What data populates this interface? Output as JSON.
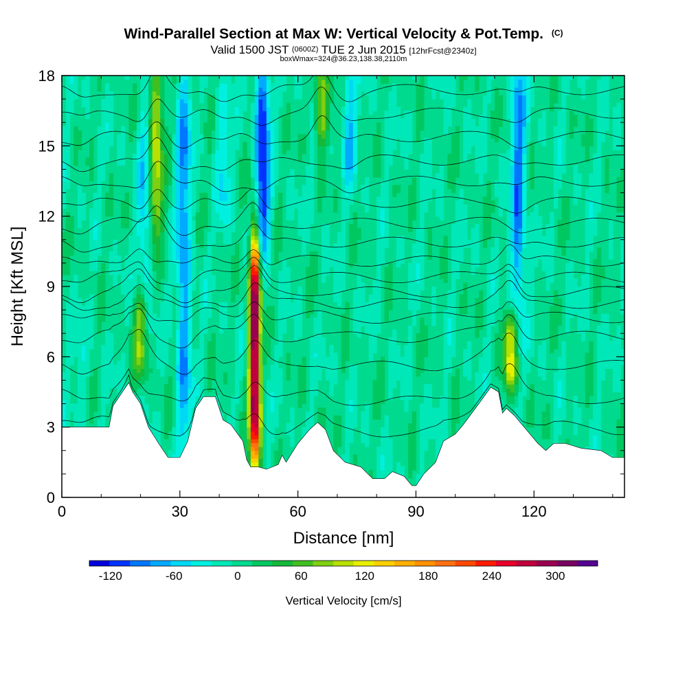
{
  "header": {
    "title": "Wind-Parallel Section at Max W: Vertical Velocity & Pot.Temp.",
    "title_mark": "(C)",
    "valid_prefix": "Valid 1500 JST",
    "valid_utc": "(0600Z)",
    "valid_date": "TUE 2 Jun 2015",
    "forecast": "[12hrFcst@2340z]",
    "box_info": "boxWmax=324@36.23,138.38,2110m"
  },
  "chart_data": {
    "type": "heatmap",
    "title": "Wind-Parallel Section at Max W: Vertical Velocity & Pot.Temp.",
    "xlabel": "Distance [nm]",
    "ylabel": "Height [Kft MSL]",
    "xlim": [
      0,
      143
    ],
    "ylim": [
      0,
      18
    ],
    "x_ticks": [
      0,
      30,
      60,
      90,
      120
    ],
    "x_tick_labels": [
      "0",
      "30",
      "60",
      "90",
      "120"
    ],
    "y_ticks": [
      0,
      3,
      6,
      9,
      12,
      15,
      18
    ],
    "y_tick_labels": [
      "0",
      "3",
      "6",
      "9",
      "12",
      "15",
      "18"
    ],
    "background_level": 7,
    "terrain": {
      "x": [
        0,
        10,
        12,
        13,
        15,
        17,
        18,
        20,
        22,
        25,
        27,
        30,
        32,
        34,
        36,
        39,
        41,
        43,
        46,
        47,
        48,
        50,
        52,
        55,
        56,
        57,
        60,
        63,
        65,
        67,
        69,
        72,
        74,
        76,
        79,
        82,
        84,
        87,
        89,
        90,
        92,
        95,
        97,
        100,
        102,
        106,
        109,
        111,
        112,
        113,
        115,
        118,
        121,
        123,
        125,
        128,
        132,
        137,
        140,
        143
      ],
      "y": [
        3.0,
        3.0,
        3.0,
        3.9,
        4.4,
        4.9,
        4.5,
        4.0,
        3.0,
        2.2,
        1.7,
        1.7,
        2.4,
        3.8,
        4.3,
        4.3,
        3.3,
        3.1,
        2.4,
        1.6,
        1.3,
        1.3,
        1.2,
        1.4,
        1.8,
        1.5,
        2.3,
        2.9,
        3.2,
        2.9,
        2.0,
        1.5,
        1.4,
        1.3,
        0.8,
        0.8,
        1.1,
        0.9,
        0.5,
        0.5,
        1.0,
        1.5,
        2.4,
        2.7,
        3.1,
        4.0,
        4.7,
        4.5,
        3.6,
        3.8,
        3.5,
        2.9,
        2.3,
        2.0,
        2.3,
        2.3,
        2.1,
        2.0,
        1.7,
        1.7
      ]
    },
    "updraft_cores": [
      {
        "x": 49,
        "y_bottom": 2.0,
        "y_top": 10.5,
        "peak": 324
      },
      {
        "x": 24,
        "y_bottom": 11.5,
        "y_top": 18,
        "peak": 100
      },
      {
        "x": 20,
        "y_bottom": 5.5,
        "y_top": 8.5,
        "peak": 80
      },
      {
        "x": 66,
        "y_bottom": 15.5,
        "y_top": 18,
        "peak": 90
      },
      {
        "x": 114,
        "y_bottom": 5.0,
        "y_top": 7.5,
        "peak": 110
      }
    ],
    "downdraft_cores": [
      {
        "x": 51,
        "y_bottom": 11.0,
        "y_top": 18,
        "peak": -120
      },
      {
        "x": 31,
        "y_bottom": 2.5,
        "y_top": 18,
        "peak": -80
      },
      {
        "x": 21,
        "y_bottom": 8.5,
        "y_top": 16,
        "peak": -50
      },
      {
        "x": 116,
        "y_bottom": 8.5,
        "y_top": 18,
        "peak": -90
      },
      {
        "x": 73,
        "y_bottom": 14,
        "y_top": 18,
        "peak": -60
      },
      {
        "x": 41,
        "y_bottom": 12,
        "y_top": 17,
        "peak": -40
      },
      {
        "x": 5,
        "y_bottom": 3.5,
        "y_top": 6.5,
        "peak": -25
      }
    ],
    "theta_contours": {
      "base_height": [
        3.1,
        4.3,
        5.7,
        6.9,
        7.7,
        8.3,
        8.8,
        9.4,
        10.1,
        10.9,
        11.7,
        12.6,
        13.5,
        14.4,
        15.4,
        16.4,
        17.4
      ]
    },
    "colorbar": {
      "title": "Vertical Velocity [cm/s]",
      "min": -140,
      "max": 340,
      "colors": [
        "#0000dc",
        "#0033ff",
        "#0077ff",
        "#00aaff",
        "#00d8f4",
        "#00f0e0",
        "#00e8b8",
        "#00da8e",
        "#00c860",
        "#14b83a",
        "#40c020",
        "#7ed010",
        "#b8e000",
        "#e8f000",
        "#ffd000",
        "#ffb000",
        "#ff9000",
        "#ff7010",
        "#ff4800",
        "#ff1a00",
        "#e8002a",
        "#c0003c",
        "#9a0050",
        "#780060",
        "#540090"
      ],
      "tick_values": [
        -120,
        -60,
        0,
        60,
        120,
        180,
        240,
        300
      ],
      "tick_labels": [
        "-120",
        "-60",
        "0",
        "60",
        "120",
        "180",
        "240",
        "300"
      ]
    }
  }
}
